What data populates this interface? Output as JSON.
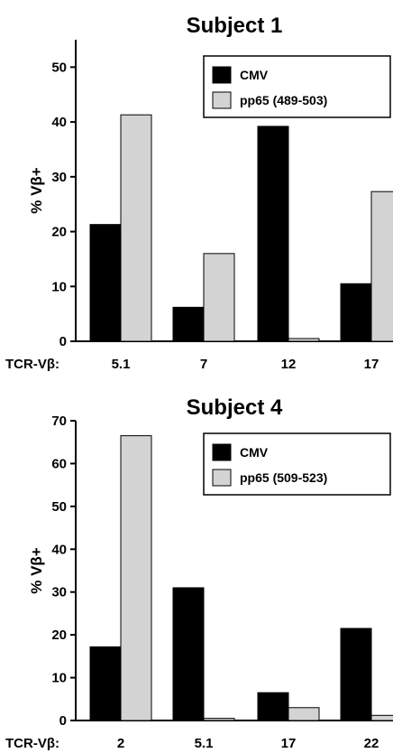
{
  "chart_data": [
    {
      "type": "bar",
      "title": "Subject 1",
      "xlabel": "TCR-Vβ:",
      "ylabel": "% Vβ+",
      "ylim": [
        0,
        55
      ],
      "yticks": [
        0,
        10,
        20,
        30,
        40,
        50
      ],
      "categories": [
        "5.1",
        "7",
        "12",
        "17"
      ],
      "series": [
        {
          "name": "CMV",
          "color": "#000000",
          "values": [
            21.3,
            6.2,
            39.2,
            10.5
          ]
        },
        {
          "name": "pp65 (489-503)",
          "color": "#d3d3d3",
          "values": [
            41.3,
            16.0,
            0.5,
            27.3
          ]
        }
      ],
      "legend": "top-right"
    },
    {
      "type": "bar",
      "title": "Subject 4",
      "xlabel": "TCR-Vβ:",
      "ylabel": "% Vβ+",
      "ylim": [
        0,
        70
      ],
      "yticks": [
        0,
        10,
        20,
        30,
        40,
        50,
        60,
        70
      ],
      "categories": [
        "2",
        "5.1",
        "17",
        "22"
      ],
      "series": [
        {
          "name": "CMV",
          "color": "#000000",
          "values": [
            17.2,
            31.0,
            6.5,
            21.5
          ]
        },
        {
          "name": "pp65 (509-523)",
          "color": "#d3d3d3",
          "values": [
            66.5,
            0.5,
            3.0,
            1.2
          ]
        }
      ],
      "legend": "top-right"
    }
  ]
}
